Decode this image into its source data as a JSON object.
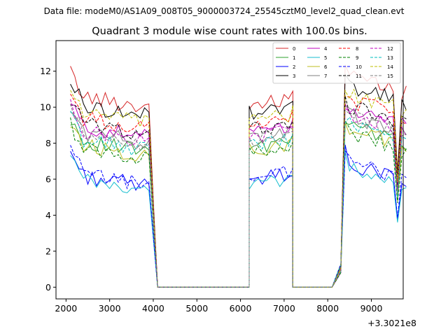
{
  "chart_data": {
    "type": "line",
    "suptitle": "Data file: modeM0/AS1A09_008T05_9000003724_25545cztM0_level2_quad_clean.evt",
    "title": "Quadrant 3 module wise count rates with 100.0s bins.",
    "xlabel": "",
    "ylabel": "",
    "x_offset_label": "+3.3021e8",
    "xlim": [
      1770,
      9730
    ],
    "ylim": [
      -0.65,
      13.7
    ],
    "x_ticks": [
      2000,
      3000,
      4000,
      5000,
      6000,
      7000,
      8000,
      9000
    ],
    "x_tick_labels": [
      "2000",
      "3000",
      "4000",
      "5000",
      "6000",
      "7000",
      "8000",
      "9000"
    ],
    "y_ticks": [
      0,
      2,
      4,
      6,
      8,
      10,
      12
    ],
    "y_tick_labels": [
      "0",
      "2",
      "4",
      "6",
      "8",
      "10",
      "12"
    ],
    "grid": false,
    "legend_placement": "top-right",
    "legend_columns": 4,
    "segments": [
      {
        "x_start": 2100,
        "count": 19
      },
      {
        "x_start": 4100,
        "count": 22
      },
      {
        "x_start": 6200,
        "count": 11
      },
      {
        "x_start": 7200,
        "count": 10
      },
      {
        "x_start": 8200,
        "count": 15
      }
    ],
    "series": [
      {
        "name": "0",
        "color": "#d62728",
        "dash": false,
        "level": 10.7
      },
      {
        "name": "1",
        "color": "#2ca02c",
        "dash": false,
        "level": 8.2
      },
      {
        "name": "2",
        "color": "#0000ff",
        "dash": false,
        "level": 6.3
      },
      {
        "name": "3",
        "color": "#000000",
        "dash": false,
        "level": 10.2
      },
      {
        "name": "4",
        "color": "#bf00bf",
        "dash": false,
        "level": 9.0
      },
      {
        "name": "5",
        "color": "#17becf",
        "dash": false,
        "level": 6.0
      },
      {
        "name": "6",
        "color": "#bcbd22",
        "dash": false,
        "level": 8.0
      },
      {
        "name": "7",
        "color": "#7f7f7f",
        "dash": false,
        "level": 8.7
      },
      {
        "name": "8",
        "color": "#ff0000",
        "dash": true,
        "level": 9.5
      },
      {
        "name": "9",
        "color": "#008000",
        "dash": true,
        "level": 7.8
      },
      {
        "name": "10",
        "color": "#0000ff",
        "dash": true,
        "level": 6.4
      },
      {
        "name": "11",
        "color": "#000000",
        "dash": true,
        "level": 9.2
      },
      {
        "name": "12",
        "color": "#bf00bf",
        "dash": true,
        "level": 8.8
      },
      {
        "name": "13",
        "color": "#00bfbf",
        "dash": true,
        "level": 8.3
      },
      {
        "name": "14",
        "color": "#bfbf00",
        "dash": true,
        "level": 9.8
      },
      {
        "name": "15",
        "color": "#7f7f7f",
        "dash": true,
        "level": 8.6
      }
    ]
  }
}
